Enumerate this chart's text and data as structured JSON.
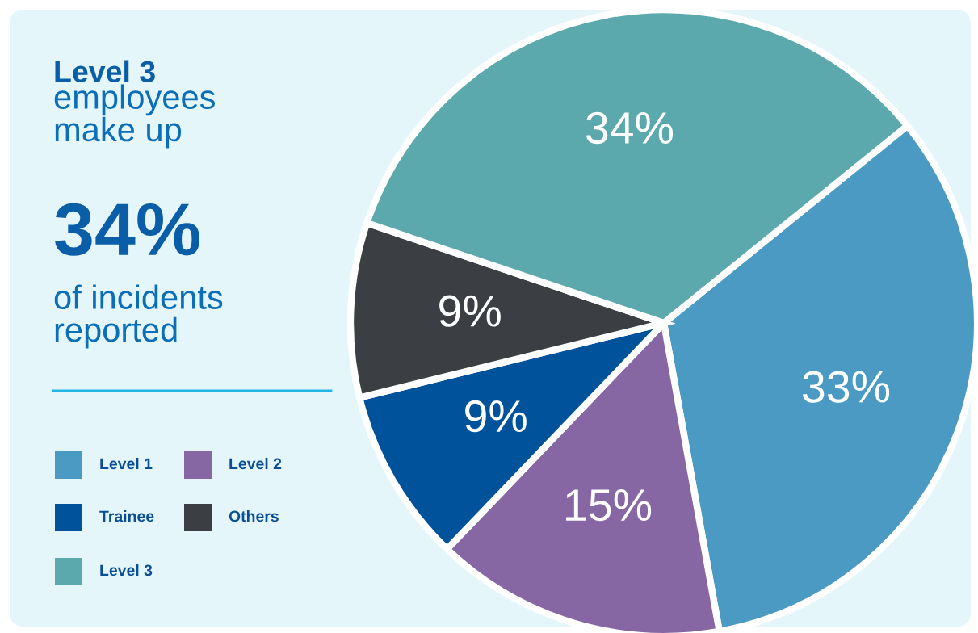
{
  "chart_data": {
    "type": "pie",
    "categories": [
      "Level 1",
      "Level 2",
      "Trainee",
      "Others",
      "Level 3"
    ],
    "values": [
      33,
      15,
      9,
      9,
      34
    ],
    "colors": [
      "#4a9ac4",
      "#8667a3",
      "#00529b",
      "#3b3f44",
      "#5ba8ad"
    ],
    "value_labels": [
      "33%",
      "15%",
      "9%",
      "9%",
      "34%"
    ],
    "annotations": [
      "Level 3",
      "employees\nmake up",
      "34%",
      "of incidents\nreported"
    ],
    "legend": "bottom left"
  }
}
